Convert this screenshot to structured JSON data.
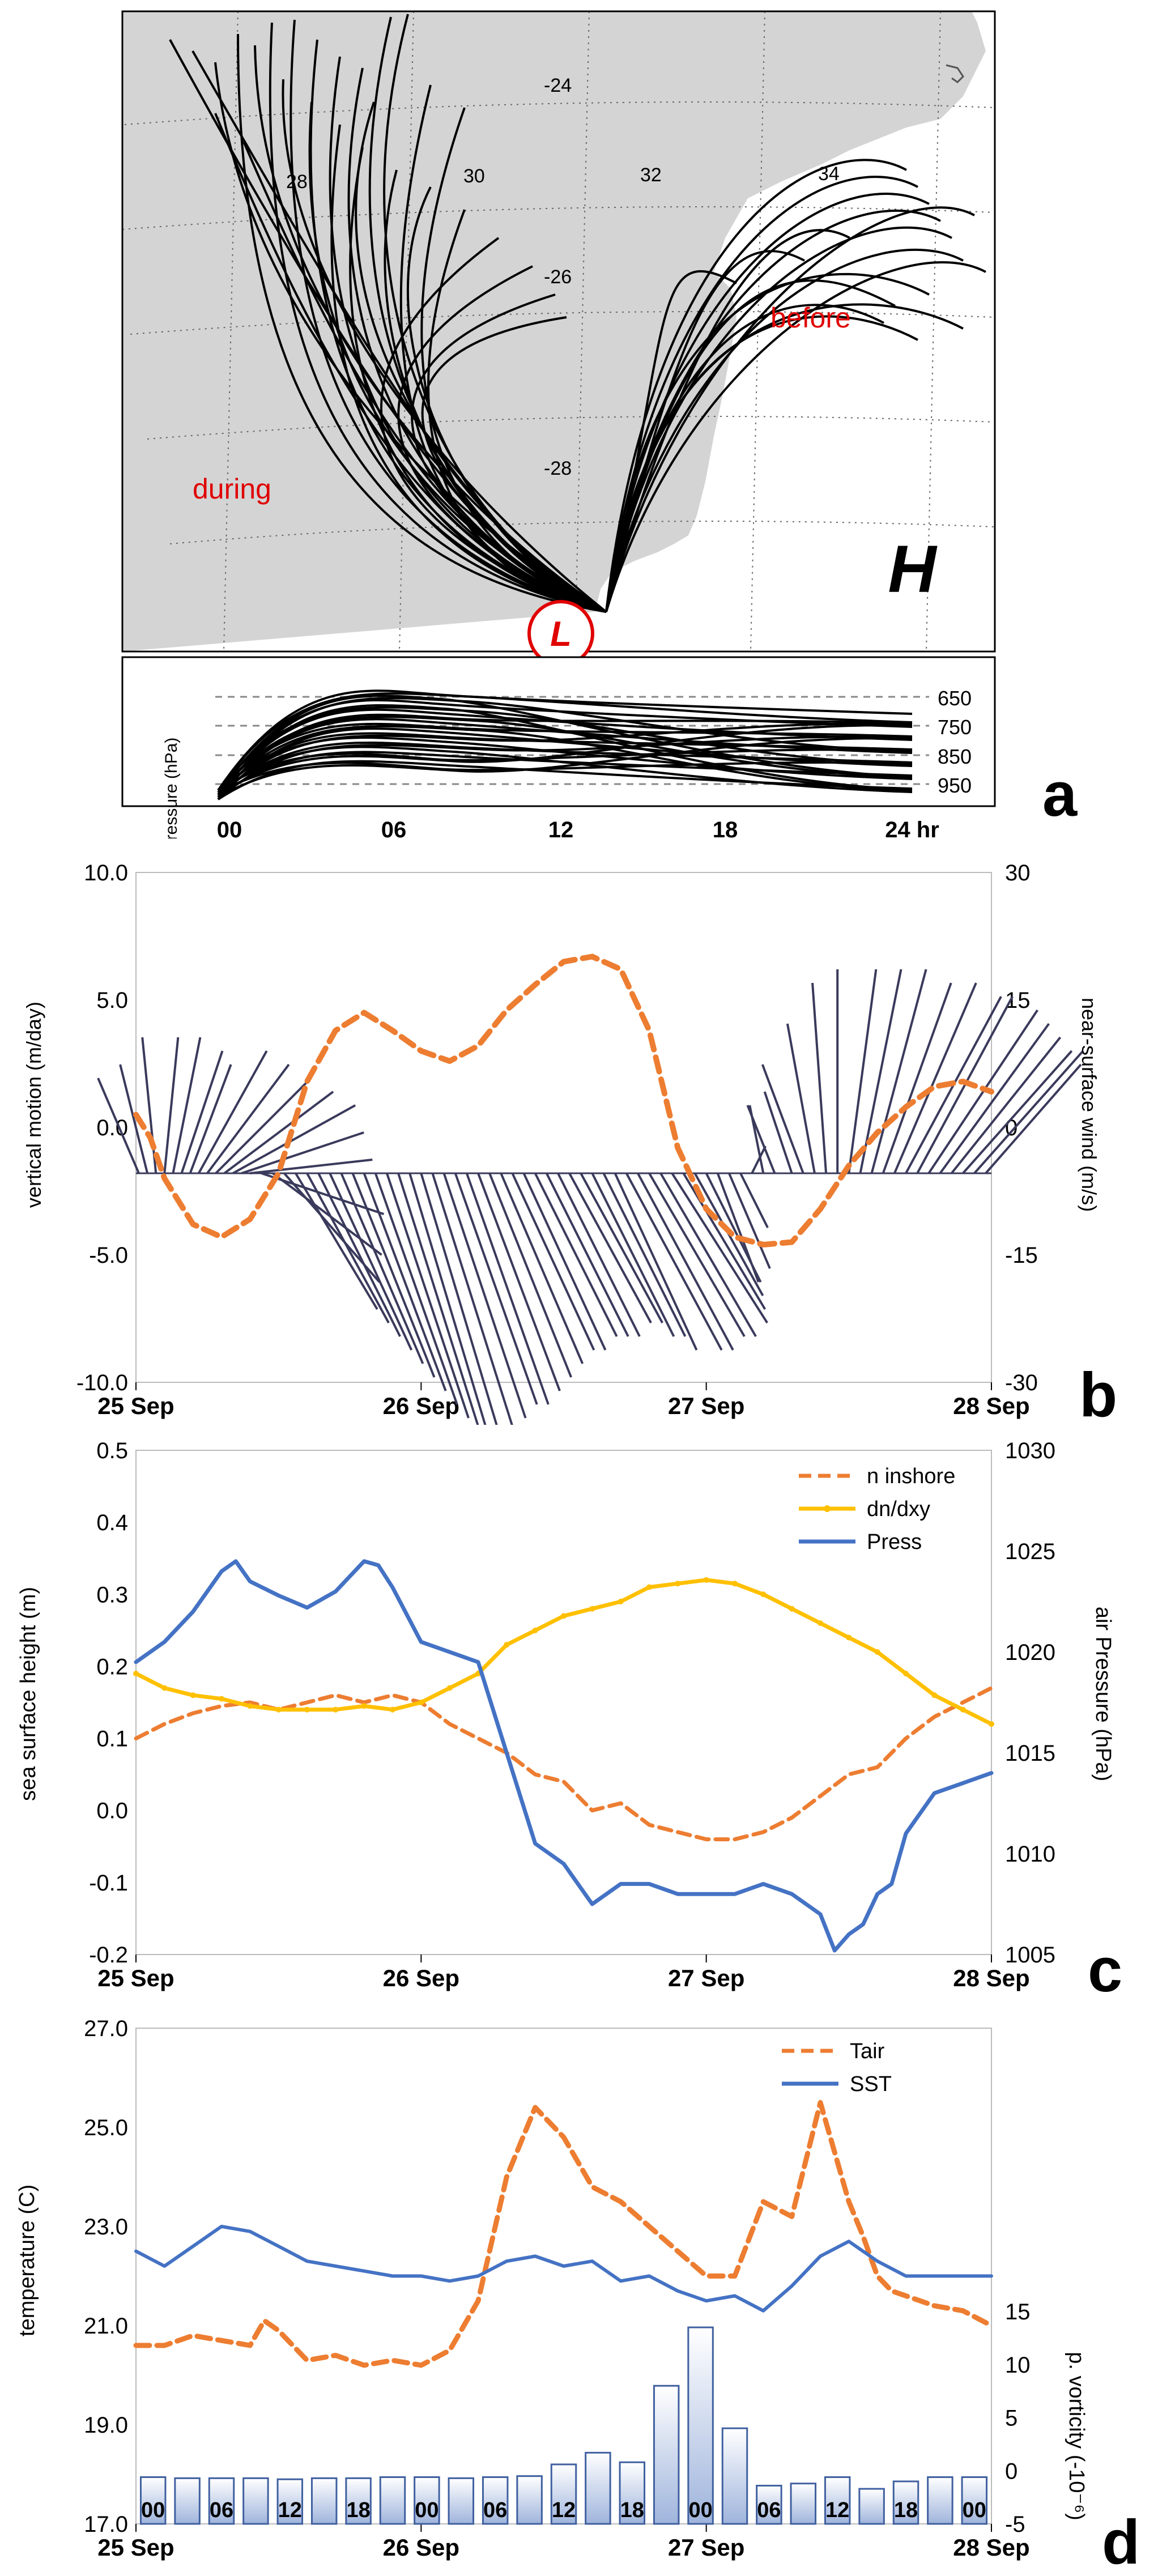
{
  "colors": {
    "land": "#d4d4d4",
    "traj": "#000000",
    "red": "#e00000",
    "orange": "#ed7d31",
    "gold": "#ffc000",
    "blue": "#4472c4",
    "wind": "#3a3a5c",
    "barFillTop": "#ffffff",
    "barFillBottom": "#9fb4dc",
    "barStroke": "#4060a0",
    "grid": "#666666"
  },
  "panel_a": {
    "letter": "a",
    "lat_labels": [
      "-24",
      "-26",
      "-28"
    ],
    "lon_labels": [
      "28",
      "30",
      "32",
      "34"
    ],
    "label_during": "during",
    "label_before": "before",
    "label_H": "H",
    "label_L": "L",
    "pressure_ylabel": "pressure (hPa)",
    "pressure_levels": [
      "650",
      "750",
      "850",
      "950"
    ],
    "hour_ticks": [
      "00",
      "06",
      "12",
      "18",
      "24 hr"
    ]
  },
  "chart_data": [
    {
      "id": "b",
      "type": "line",
      "letter": "b",
      "ylabel": "vertical motion (m/day)",
      "y2label": "near-surface wind  (m/s)",
      "ylim": [
        -10,
        10
      ],
      "y2lim": [
        -30,
        30
      ],
      "yticks": [
        "10.0",
        "5.0",
        "0.0",
        "-5.0",
        "-10.0"
      ],
      "y2ticks": [
        "30",
        "15",
        "0",
        "-15",
        "-30"
      ],
      "xticks": [
        "25 Sep",
        "26 Sep",
        "27 Sep",
        "28 Sep"
      ],
      "x_unit": "days since 25 Sep 00Z",
      "series": [
        {
          "name": "vertical motion",
          "style": "dashed",
          "color": "orange",
          "x": [
            0,
            0.05,
            0.1,
            0.2,
            0.3,
            0.4,
            0.5,
            0.6,
            0.7,
            0.8,
            0.9,
            1.0,
            1.1,
            1.2,
            1.3,
            1.4,
            1.5,
            1.6,
            1.7,
            1.8,
            1.9,
            2.0,
            2.1,
            2.2,
            2.3,
            2.4,
            2.5,
            2.6,
            2.7,
            2.8,
            2.9,
            3.0
          ],
          "values": [
            0.5,
            -0.4,
            -2.0,
            -3.8,
            -4.3,
            -3.6,
            -1.8,
            1.8,
            3.8,
            4.5,
            3.8,
            3.0,
            2.6,
            3.2,
            4.6,
            5.6,
            6.5,
            6.7,
            6.2,
            3.8,
            -0.8,
            -3.2,
            -4.3,
            -4.6,
            -4.5,
            -3.2,
            -1.5,
            -0.2,
            0.8,
            1.6,
            1.8,
            1.4
          ]
        }
      ],
      "wind_baseline": -1.8,
      "wind_sticks": [
        {
          "x": 0.01,
          "u": -3,
          "v": 7
        },
        {
          "x": 0.04,
          "u": -2,
          "v": 8
        },
        {
          "x": 0.07,
          "u": -1,
          "v": 10
        },
        {
          "x": 0.1,
          "u": 1,
          "v": 10
        },
        {
          "x": 0.13,
          "u": 2,
          "v": 10
        },
        {
          "x": 0.16,
          "u": 3,
          "v": 9
        },
        {
          "x": 0.19,
          "u": 3,
          "v": 8
        },
        {
          "x": 0.22,
          "u": 5,
          "v": 9
        },
        {
          "x": 0.25,
          "u": 6,
          "v": 8
        },
        {
          "x": 0.28,
          "u": 7,
          "v": 7
        },
        {
          "x": 0.31,
          "u": 8,
          "v": 6
        },
        {
          "x": 0.34,
          "u": 9,
          "v": 5
        },
        {
          "x": 0.37,
          "u": 9,
          "v": 3
        },
        {
          "x": 0.4,
          "u": 9,
          "v": 1
        },
        {
          "x": 0.44,
          "u": 9,
          "v": -3
        },
        {
          "x": 0.48,
          "u": 8,
          "v": -6
        },
        {
          "x": 0.52,
          "u": 7,
          "v": -8
        },
        {
          "x": 0.56,
          "u": 6,
          "v": -10
        },
        {
          "x": 0.6,
          "u": 6,
          "v": -11
        },
        {
          "x": 0.64,
          "u": 6,
          "v": -12
        },
        {
          "x": 0.68,
          "u": 6,
          "v": -13
        },
        {
          "x": 0.72,
          "u": 6,
          "v": -14
        },
        {
          "x": 0.76,
          "u": 6,
          "v": -15
        },
        {
          "x": 0.8,
          "u": 6,
          "v": -16
        },
        {
          "x": 0.84,
          "u": 6,
          "v": -17
        },
        {
          "x": 0.88,
          "u": 6,
          "v": -18
        },
        {
          "x": 0.92,
          "u": 6,
          "v": -19
        },
        {
          "x": 0.96,
          "u": 6,
          "v": -20
        },
        {
          "x": 1.0,
          "u": 6,
          "v": -20
        },
        {
          "x": 1.04,
          "u": 6,
          "v": -19
        },
        {
          "x": 1.08,
          "u": 6,
          "v": -18
        },
        {
          "x": 1.12,
          "u": 6,
          "v": -17
        },
        {
          "x": 1.16,
          "u": 6,
          "v": -17
        },
        {
          "x": 1.2,
          "u": 6,
          "v": -16
        },
        {
          "x": 1.24,
          "u": 6,
          "v": -15
        },
        {
          "x": 1.28,
          "u": 6,
          "v": -14
        },
        {
          "x": 1.32,
          "u": 6,
          "v": -13
        },
        {
          "x": 1.36,
          "u": 6,
          "v": -13
        },
        {
          "x": 1.4,
          "u": 6,
          "v": -12
        },
        {
          "x": 1.44,
          "u": 6,
          "v": -12
        },
        {
          "x": 1.48,
          "u": 6,
          "v": -12
        },
        {
          "x": 1.52,
          "u": 6,
          "v": -11
        },
        {
          "x": 1.56,
          "u": 6,
          "v": -11
        },
        {
          "x": 1.6,
          "u": 6,
          "v": -12
        },
        {
          "x": 1.64,
          "u": 6,
          "v": -12
        },
        {
          "x": 1.68,
          "u": 6,
          "v": -13
        },
        {
          "x": 1.72,
          "u": 7,
          "v": -13
        },
        {
          "x": 1.76,
          "u": 7,
          "v": -13
        },
        {
          "x": 1.8,
          "u": 7,
          "v": -12
        },
        {
          "x": 1.84,
          "u": 7,
          "v": -12
        },
        {
          "x": 1.88,
          "u": 7,
          "v": -11
        },
        {
          "x": 1.92,
          "u": 6,
          "v": -10
        },
        {
          "x": 1.96,
          "u": 5,
          "v": -9
        },
        {
          "x": 2.0,
          "u": 4,
          "v": -8
        },
        {
          "x": 2.04,
          "u": 3,
          "v": -8
        },
        {
          "x": 2.08,
          "u": 3,
          "v": -7
        },
        {
          "x": 2.12,
          "u": 2,
          "v": -4
        },
        {
          "x": 2.16,
          "u": 1,
          "v": 2
        },
        {
          "x": 2.2,
          "u": -1,
          "v": 5
        },
        {
          "x": 2.24,
          "u": -2,
          "v": 5
        },
        {
          "x": 2.3,
          "u": -2,
          "v": 6
        },
        {
          "x": 2.34,
          "u": -3,
          "v": 8
        },
        {
          "x": 2.38,
          "u": -2,
          "v": 11
        },
        {
          "x": 2.42,
          "u": -1,
          "v": 14
        },
        {
          "x": 2.46,
          "u": 0,
          "v": 15
        },
        {
          "x": 2.5,
          "u": 2,
          "v": 15
        },
        {
          "x": 2.54,
          "u": 3,
          "v": 15
        },
        {
          "x": 2.58,
          "u": 4,
          "v": 15
        },
        {
          "x": 2.62,
          "u": 5,
          "v": 14
        },
        {
          "x": 2.66,
          "u": 6,
          "v": 14
        },
        {
          "x": 2.7,
          "u": 7,
          "v": 13
        },
        {
          "x": 2.74,
          "u": 7,
          "v": 13
        },
        {
          "x": 2.78,
          "u": 8,
          "v": 12
        },
        {
          "x": 2.82,
          "u": 8,
          "v": 11
        },
        {
          "x": 2.86,
          "u": 8,
          "v": 10
        },
        {
          "x": 2.9,
          "u": 8,
          "v": 9
        },
        {
          "x": 2.94,
          "u": 8,
          "v": 9
        },
        {
          "x": 2.98,
          "u": 7,
          "v": 8
        }
      ]
    },
    {
      "id": "c",
      "type": "line",
      "letter": "c",
      "ylabel": "sea surface height (m)",
      "y2label": "air Pressure (hPa)",
      "ylim": [
        -0.2,
        0.5
      ],
      "y2lim": [
        1005,
        1030
      ],
      "yticks": [
        "0.5",
        "0.4",
        "0.3",
        "0.2",
        "0.1",
        "0.0",
        "-0.1",
        "-0.2"
      ],
      "y2ticks": [
        "1030",
        "1025",
        "1020",
        "1015",
        "1010",
        "1005"
      ],
      "xticks": [
        "25 Sep",
        "26 Sep",
        "27 Sep",
        "28 Sep"
      ],
      "series": [
        {
          "name": "n inshore",
          "style": "dashed",
          "color": "orange",
          "axis": "left",
          "x": [
            0,
            0.1,
            0.2,
            0.3,
            0.4,
            0.5,
            0.6,
            0.7,
            0.8,
            0.9,
            1.0,
            1.1,
            1.2,
            1.3,
            1.4,
            1.5,
            1.6,
            1.7,
            1.8,
            1.9,
            2.0,
            2.1,
            2.2,
            2.3,
            2.4,
            2.5,
            2.6,
            2.7,
            2.8,
            2.9,
            3.0
          ],
          "values": [
            0.1,
            0.12,
            0.135,
            0.145,
            0.15,
            0.14,
            0.15,
            0.16,
            0.15,
            0.16,
            0.15,
            0.12,
            0.1,
            0.08,
            0.05,
            0.04,
            0.0,
            0.01,
            -0.02,
            -0.03,
            -0.04,
            -0.04,
            -0.03,
            -0.01,
            0.02,
            0.05,
            0.06,
            0.1,
            0.13,
            0.15,
            0.17
          ]
        },
        {
          "name": "dn/dxy",
          "style": "dotted-solid",
          "color": "gold",
          "axis": "left",
          "x": [
            0,
            0.1,
            0.2,
            0.3,
            0.4,
            0.5,
            0.6,
            0.7,
            0.8,
            0.9,
            1.0,
            1.1,
            1.2,
            1.3,
            1.4,
            1.5,
            1.6,
            1.7,
            1.8,
            1.9,
            2.0,
            2.1,
            2.2,
            2.3,
            2.4,
            2.5,
            2.6,
            2.7,
            2.8,
            2.9,
            3.0
          ],
          "values": [
            0.19,
            0.17,
            0.16,
            0.155,
            0.145,
            0.14,
            0.14,
            0.14,
            0.145,
            0.14,
            0.15,
            0.17,
            0.19,
            0.23,
            0.25,
            0.27,
            0.28,
            0.29,
            0.31,
            0.315,
            0.32,
            0.315,
            0.3,
            0.28,
            0.26,
            0.24,
            0.22,
            0.19,
            0.16,
            0.14,
            0.12
          ]
        },
        {
          "name": "Press",
          "style": "solid",
          "color": "blue",
          "axis": "right",
          "x": [
            0,
            0.1,
            0.2,
            0.3,
            0.35,
            0.4,
            0.5,
            0.6,
            0.7,
            0.8,
            0.85,
            0.9,
            1.0,
            1.1,
            1.2,
            1.3,
            1.4,
            1.5,
            1.6,
            1.7,
            1.8,
            1.9,
            2.0,
            2.1,
            2.2,
            2.3,
            2.4,
            2.45,
            2.5,
            2.55,
            2.6,
            2.65,
            2.7,
            2.8,
            2.9,
            3.0
          ],
          "values": [
            1019.5,
            1020.5,
            1022,
            1024,
            1024.5,
            1023.5,
            1022.8,
            1022.2,
            1023,
            1024.5,
            1024.3,
            1023.2,
            1020.5,
            1020.0,
            1019.5,
            1015,
            1010.5,
            1009.5,
            1007.5,
            1008.5,
            1008.5,
            1008,
            1008,
            1008,
            1008.5,
            1008,
            1007,
            1005.2,
            1006,
            1006.5,
            1008,
            1008.5,
            1011,
            1013,
            1013.5,
            1014
          ]
        }
      ],
      "legend": [
        "n inshore",
        "dn/dxy",
        "Press"
      ]
    },
    {
      "id": "d",
      "type": "line",
      "letter": "d",
      "ylabel": "temperature (C)",
      "y2label": "p. vorticity (-10⁻⁶)",
      "ylim": [
        17,
        27
      ],
      "y2lim": [
        -5,
        15
      ],
      "yticks": [
        "27.0",
        "25.0",
        "23.0",
        "21.0",
        "19.0",
        "17.0"
      ],
      "y2ticks": [
        "15",
        "10",
        "5",
        "0",
        "-5"
      ],
      "xticks": [
        "25 Sep",
        "26 Sep",
        "27 Sep",
        "28 Sep"
      ],
      "series": [
        {
          "name": "Tair",
          "style": "dashed",
          "color": "orange",
          "axis": "left",
          "x": [
            0,
            0.1,
            0.2,
            0.3,
            0.4,
            0.45,
            0.5,
            0.6,
            0.7,
            0.8,
            0.9,
            1.0,
            1.1,
            1.2,
            1.3,
            1.4,
            1.5,
            1.6,
            1.7,
            1.8,
            1.9,
            2.0,
            2.1,
            2.2,
            2.3,
            2.4,
            2.5,
            2.55,
            2.6,
            2.65,
            2.7,
            2.8,
            2.9,
            3.0
          ],
          "values": [
            20.6,
            20.6,
            20.8,
            20.7,
            20.6,
            21.1,
            20.9,
            20.3,
            20.4,
            20.2,
            20.3,
            20.2,
            20.5,
            21.5,
            24.0,
            25.4,
            24.8,
            23.8,
            23.5,
            23.0,
            22.5,
            22.0,
            22.0,
            23.5,
            23.2,
            25.5,
            23.5,
            22.8,
            22.0,
            21.7,
            21.6,
            21.4,
            21.3,
            21.0
          ]
        },
        {
          "name": "SST",
          "style": "solid",
          "color": "blue",
          "axis": "left",
          "x": [
            0,
            0.1,
            0.2,
            0.3,
            0.4,
            0.5,
            0.6,
            0.7,
            0.8,
            0.9,
            1.0,
            1.1,
            1.2,
            1.3,
            1.4,
            1.5,
            1.6,
            1.7,
            1.8,
            1.9,
            2.0,
            2.1,
            2.2,
            2.3,
            2.4,
            2.5,
            2.6,
            2.7,
            2.8,
            2.9,
            3.0
          ],
          "values": [
            22.5,
            22.2,
            22.6,
            23.0,
            22.9,
            22.6,
            22.3,
            22.2,
            22.1,
            22.0,
            22.0,
            21.9,
            22.0,
            22.3,
            22.4,
            22.2,
            22.3,
            21.9,
            22.0,
            21.7,
            21.5,
            21.6,
            21.3,
            21.8,
            22.4,
            22.7,
            22.3,
            22.0,
            22.0,
            22.0,
            22.0
          ]
        }
      ],
      "bars": {
        "name": "p. vorticity",
        "axis": "right",
        "labels": [
          "00",
          "",
          "06",
          "",
          "12",
          "",
          "18",
          "",
          "00",
          "",
          "06",
          "",
          "12",
          "",
          "18",
          "",
          "00",
          "",
          "06",
          "",
          "12",
          "",
          "18",
          "",
          "00"
        ],
        "values": [
          -0.6,
          -0.7,
          -0.7,
          -0.7,
          -0.8,
          -0.7,
          -0.7,
          -0.6,
          -0.6,
          -0.7,
          -0.6,
          -0.5,
          0.6,
          1.7,
          0.8,
          8.0,
          13.5,
          4.0,
          -1.4,
          -1.2,
          -0.6,
          -1.7,
          -1.0,
          -0.6,
          -0.6
        ]
      },
      "legend": [
        "Tair",
        "SST"
      ]
    }
  ]
}
